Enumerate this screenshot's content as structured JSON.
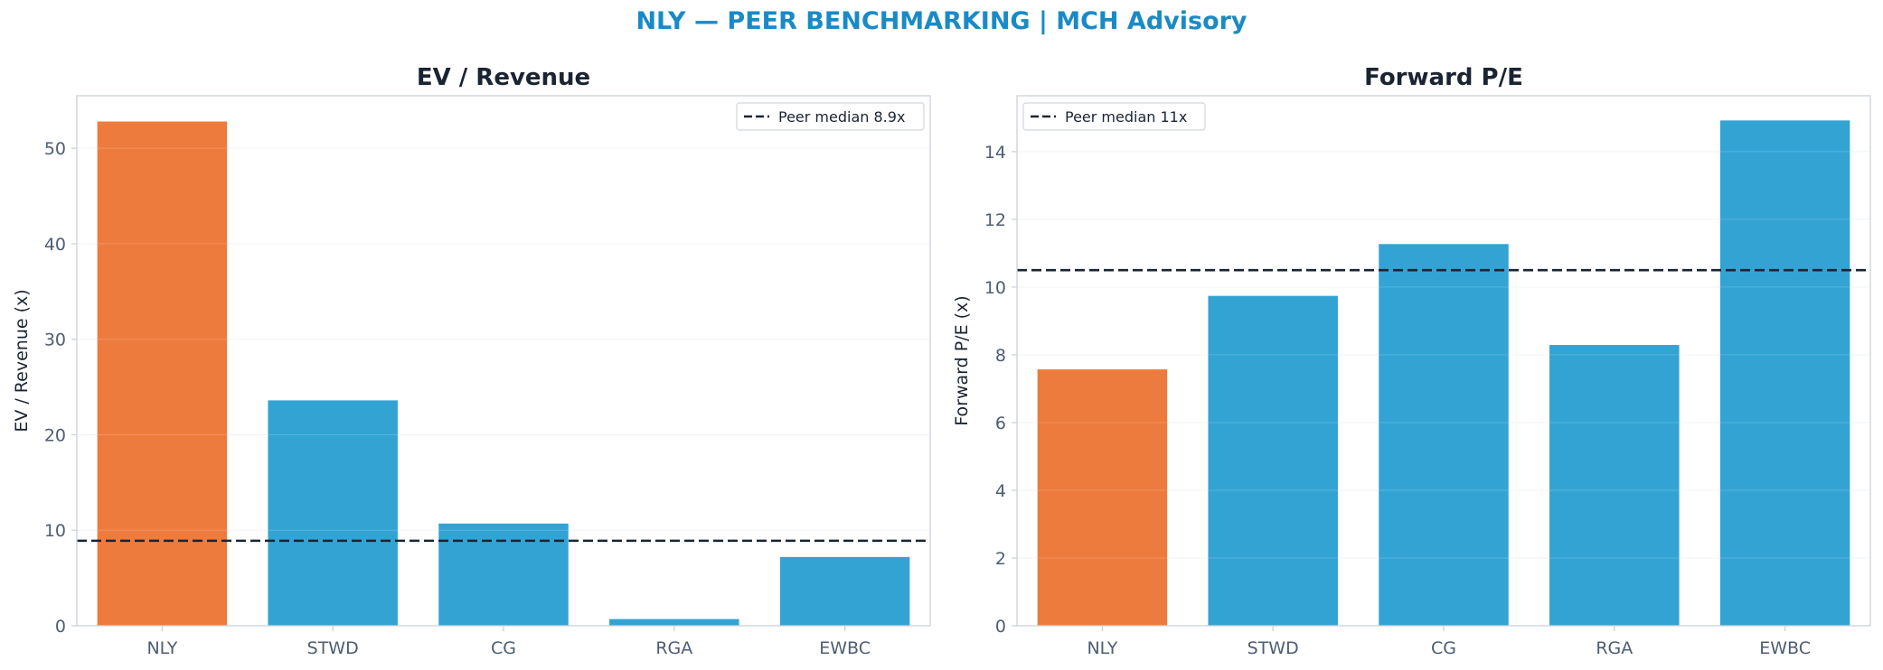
{
  "figure": {
    "suptitle": "NLY — PEER BENCHMARKING | MCH Advisory",
    "title_color": "#1a8ac6"
  },
  "colors": {
    "highlight": "#ed7b3d",
    "peer": "#33a3d4",
    "median_line": "#1a2433",
    "axis_text": "#4d5e73",
    "title_text": "#1a2433"
  },
  "chart_data": [
    {
      "type": "bar",
      "title": "EV / Revenue",
      "ylabel": "EV / Revenue (x)",
      "categories": [
        "NLY",
        "STWD",
        "CG",
        "RGA",
        "EWBC"
      ],
      "values": [
        52.8,
        23.6,
        10.7,
        0.7,
        7.2
      ],
      "highlight": "NLY",
      "ylim": [
        0,
        55.5
      ],
      "yticks": [
        0,
        10,
        20,
        30,
        40,
        50
      ],
      "reference_line": {
        "value": 8.9,
        "label": "Peer median 8.9x",
        "style": "dashed"
      },
      "legend_position": "top-right",
      "grid": "y"
    },
    {
      "type": "bar",
      "title": "Forward P/E",
      "ylabel": "Forward P/E (x)",
      "categories": [
        "NLY",
        "STWD",
        "CG",
        "RGA",
        "EWBC"
      ],
      "values": [
        7.57,
        9.74,
        11.27,
        8.29,
        14.92
      ],
      "highlight": "NLY",
      "ylim": [
        0,
        15.65
      ],
      "yticks": [
        0,
        2,
        4,
        6,
        8,
        10,
        12,
        14
      ],
      "reference_line": {
        "value": 10.5,
        "label": "Peer median 11x",
        "style": "dashed"
      },
      "legend_position": "top-left",
      "grid": "y"
    }
  ]
}
